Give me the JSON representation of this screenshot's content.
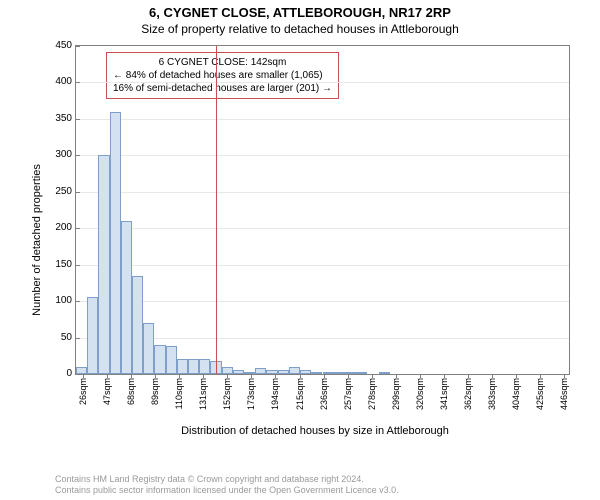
{
  "title": "6, CYGNET CLOSE, ATTLEBOROUGH, NR17 2RP",
  "subtitle": "Size of property relative to detached houses in Attleborough",
  "ylabel": "Number of detached properties",
  "xlabel": "Distribution of detached houses by size in Attleborough",
  "chart": {
    "type": "histogram",
    "ylim": [
      0,
      450
    ],
    "ytick_step": 50,
    "x_start": 26,
    "x_step": 21,
    "x_count": 21,
    "x_unit_min": 20,
    "x_unit_max": 450,
    "x_suffix": "sqm",
    "bar_fill": "#d3e1f1",
    "bar_stroke": "#7f9fc8",
    "grid_color": "#e8e8e8",
    "border_color": "#808080",
    "background_color": "#ffffff",
    "values": [
      10,
      105,
      300,
      360,
      210,
      135,
      70,
      40,
      38,
      20,
      20,
      20,
      18,
      10,
      5,
      2,
      8,
      5,
      5,
      10,
      5,
      2,
      2,
      2,
      2,
      2,
      0,
      2,
      0,
      0,
      0,
      0,
      0,
      0,
      0,
      0,
      0,
      0,
      0,
      0,
      0,
      0,
      0,
      0
    ]
  },
  "marker": {
    "value_sqm": 142,
    "line_color": "#c8504f",
    "box_border": "#c8504f",
    "lines": [
      "6 CYGNET CLOSE: 142sqm",
      "← 84% of detached houses are smaller (1,065)",
      "16% of semi-detached houses are larger (201) →"
    ]
  },
  "footer": [
    "Contains HM Land Registry data © Crown copyright and database right 2024.",
    "Contains public sector information licensed under the Open Government Licence v3.0."
  ],
  "fontsize": {
    "title": 13,
    "subtitle": 12,
    "axis_label": 11,
    "tick": 10,
    "xtick": 9,
    "annot": 10,
    "footer": 9
  }
}
